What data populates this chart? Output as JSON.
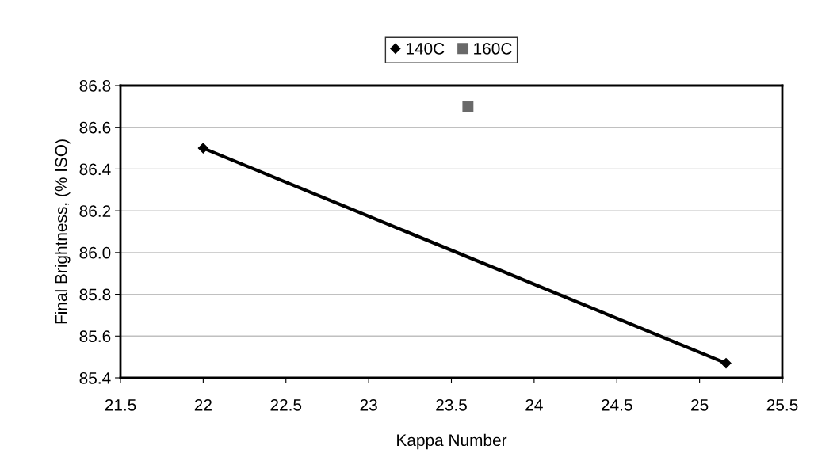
{
  "chart_data": {
    "type": "line",
    "xlabel": "Kappa Number",
    "ylabel": "Final Brightness, (% ISO)",
    "series": [
      {
        "name": "140C",
        "color": "#000000",
        "marker": "diamond",
        "x": [
          22,
          25.16
        ],
        "values": [
          86.5,
          85.47
        ]
      },
      {
        "name": "160C",
        "color": "#696969",
        "type": "scatter",
        "marker": "square",
        "x": [
          23.6
        ],
        "values": [
          86.7
        ]
      }
    ],
    "xlim": [
      21.5,
      25.5
    ],
    "xticks": [
      21.5,
      22,
      22.5,
      23,
      23.5,
      24,
      24.5,
      25,
      25.5
    ],
    "ylim": [
      85.4,
      86.8
    ],
    "yticks": [
      {
        "value": 85.4,
        "label": "85.4"
      },
      {
        "value": 85.6,
        "label": "85.6"
      },
      {
        "value": 85.8,
        "label": "85.8"
      },
      {
        "value": 86.0,
        "label": "86.0"
      },
      {
        "value": 86.2,
        "label": "86.2"
      },
      {
        "value": 86.4,
        "label": "86.4"
      },
      {
        "value": 86.6,
        "label": "86.6"
      },
      {
        "value": 86.8,
        "label": "86.8"
      }
    ],
    "grid": "y",
    "legend": "top"
  }
}
